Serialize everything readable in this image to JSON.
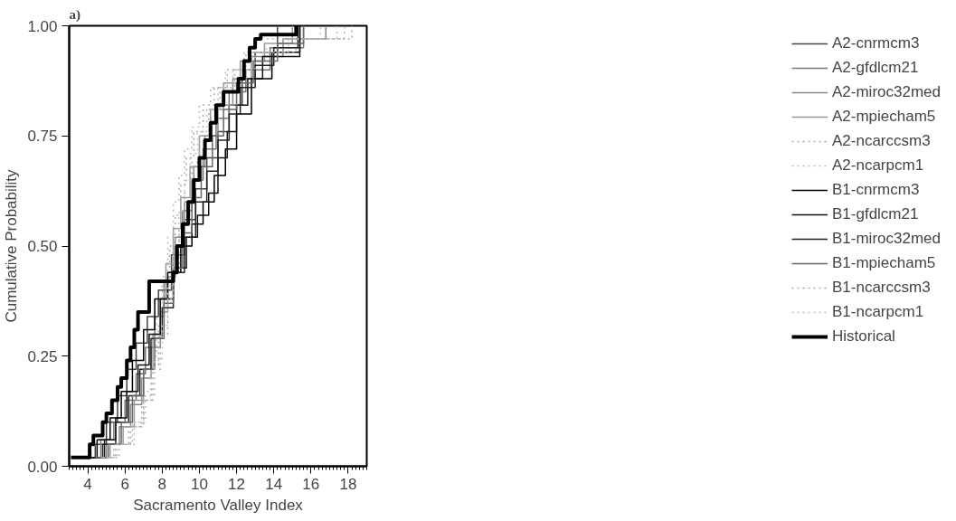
{
  "chart_data": {
    "type": "step",
    "xlabel": "Sacramento Valley Index",
    "ylabel": "Cumulative Probability",
    "annotations": [
      "a)"
    ],
    "xlim": [
      3,
      19
    ],
    "ylim": [
      0,
      1.0
    ],
    "xticks": [
      4,
      6,
      8,
      10,
      12,
      14,
      16,
      18
    ],
    "yticks": [
      {
        "value": 0,
        "label": "0.00"
      },
      {
        "value": 0.25,
        "label": "0.25"
      },
      {
        "value": 0.5,
        "label": "0.50"
      },
      {
        "value": 0.75,
        "label": "0.75"
      },
      {
        "value": 1.0,
        "label": "1.00"
      }
    ],
    "grid": false,
    "legend": "right",
    "series": [
      {
        "name": "A2-cnrmcm3",
        "color": "#444444",
        "x": [
          3.6,
          4.4,
          5.0,
          5.6,
          6.1,
          6.6,
          7.2,
          7.8,
          8.5,
          9.2,
          9.8,
          10.4,
          11.0,
          11.6,
          12.3,
          13.0,
          14.2
        ],
        "values": [
          0.02,
          0.05,
          0.1,
          0.16,
          0.22,
          0.28,
          0.34,
          0.4,
          0.48,
          0.56,
          0.63,
          0.7,
          0.76,
          0.82,
          0.88,
          0.94,
          1.0
        ]
      },
      {
        "name": "A2-gfdlcm21",
        "color": "#777777",
        "x": [
          4.0,
          4.7,
          5.4,
          6.0,
          6.6,
          7.1,
          7.6,
          8.1,
          8.6,
          9.1,
          9.6,
          10.2,
          10.9,
          11.6,
          12.5,
          13.8,
          15.6
        ],
        "values": [
          0.02,
          0.06,
          0.1,
          0.15,
          0.21,
          0.27,
          0.34,
          0.42,
          0.5,
          0.58,
          0.65,
          0.72,
          0.79,
          0.85,
          0.9,
          0.95,
          1.0
        ]
      },
      {
        "name": "A2-miroc32med",
        "color": "#888888",
        "x": [
          4.3,
          5.0,
          5.7,
          6.3,
          6.9,
          7.4,
          7.9,
          8.3,
          8.7,
          9.2,
          9.7,
          10.3,
          11.0,
          11.8,
          12.8,
          14.5,
          16.8
        ],
        "values": [
          0.02,
          0.05,
          0.09,
          0.14,
          0.2,
          0.27,
          0.35,
          0.43,
          0.52,
          0.6,
          0.68,
          0.75,
          0.82,
          0.88,
          0.93,
          0.97,
          1.0
        ]
      },
      {
        "name": "A2-mpiecham5",
        "color": "#999999",
        "x": [
          4.5,
          5.2,
          5.9,
          6.5,
          7.0,
          7.5,
          7.9,
          8.2,
          8.6,
          9.0,
          9.5,
          10.0,
          10.6,
          11.3,
          12.2,
          13.5,
          15.0
        ],
        "values": [
          0.02,
          0.05,
          0.09,
          0.15,
          0.22,
          0.3,
          0.38,
          0.46,
          0.54,
          0.61,
          0.68,
          0.75,
          0.81,
          0.87,
          0.92,
          0.96,
          1.0
        ]
      },
      {
        "name": "A2-ncarccsm3",
        "color": "#aaaaaa",
        "line_style": "dotted",
        "x": [
          4.6,
          5.4,
          6.2,
          6.9,
          7.4,
          7.8,
          8.1,
          8.4,
          8.7,
          9.0,
          9.3,
          9.7,
          10.2,
          10.8,
          11.5,
          12.5,
          14.5,
          18.2
        ],
        "values": [
          0.02,
          0.05,
          0.09,
          0.15,
          0.23,
          0.32,
          0.42,
          0.5,
          0.57,
          0.64,
          0.7,
          0.76,
          0.82,
          0.86,
          0.9,
          0.94,
          0.97,
          1.0
        ]
      },
      {
        "name": "A2-ncarpcm1",
        "color": "#bbbbbb",
        "line_style": "dotted",
        "x": [
          4.9,
          5.7,
          6.4,
          7.0,
          7.4,
          7.7,
          8.0,
          8.3,
          8.6,
          8.9,
          9.2,
          9.6,
          10.0,
          10.6,
          11.4,
          12.4,
          13.6,
          17.4
        ],
        "values": [
          0.02,
          0.05,
          0.1,
          0.17,
          0.25,
          0.34,
          0.43,
          0.52,
          0.6,
          0.66,
          0.72,
          0.77,
          0.82,
          0.86,
          0.9,
          0.94,
          0.97,
          1.0
        ]
      },
      {
        "name": "B1-cnrmcm3",
        "color": "#000000",
        "x": [
          3.8,
          4.5,
          5.2,
          5.8,
          6.4,
          7.0,
          7.6,
          8.3,
          9.0,
          9.6,
          10.2,
          10.8,
          11.4,
          12.0,
          12.8,
          13.9,
          15.4
        ],
        "values": [
          0.02,
          0.06,
          0.11,
          0.17,
          0.24,
          0.31,
          0.38,
          0.44,
          0.5,
          0.55,
          0.6,
          0.66,
          0.72,
          0.8,
          0.88,
          0.94,
          1.0
        ]
      },
      {
        "name": "B1-gfdlcm21",
        "color": "#111111",
        "x": [
          4.2,
          4.9,
          5.5,
          6.1,
          6.7,
          7.3,
          7.9,
          8.6,
          9.3,
          9.9,
          10.5,
          11.0,
          11.5,
          12.0,
          12.6,
          13.4,
          15.4
        ],
        "values": [
          0.02,
          0.06,
          0.11,
          0.17,
          0.23,
          0.3,
          0.38,
          0.45,
          0.52,
          0.57,
          0.62,
          0.7,
          0.76,
          0.82,
          0.88,
          0.93,
          1.0
        ]
      },
      {
        "name": "B1-miroc32med",
        "color": "#222222",
        "x": [
          4.1,
          4.8,
          5.5,
          6.2,
          6.8,
          7.4,
          8.0,
          8.6,
          9.2,
          9.8,
          10.4,
          11.0,
          11.6,
          12.2,
          13.0,
          14.0,
          15.3
        ],
        "values": [
          0.02,
          0.05,
          0.1,
          0.16,
          0.22,
          0.29,
          0.36,
          0.44,
          0.52,
          0.6,
          0.67,
          0.74,
          0.8,
          0.86,
          0.91,
          0.95,
          1.0
        ]
      },
      {
        "name": "B1-mpiecham5",
        "color": "#666666",
        "x": [
          4.4,
          5.1,
          5.8,
          6.4,
          7.0,
          7.6,
          8.1,
          8.6,
          9.1,
          9.6,
          10.1,
          10.7,
          11.3,
          12.0,
          12.9,
          14.2,
          15.6
        ],
        "values": [
          0.02,
          0.05,
          0.1,
          0.16,
          0.22,
          0.29,
          0.37,
          0.45,
          0.53,
          0.61,
          0.68,
          0.75,
          0.81,
          0.87,
          0.92,
          0.96,
          1.0
        ]
      },
      {
        "name": "B1-ncarccsm3",
        "color": "#aaaaaa",
        "line_style": "dotted",
        "x": [
          4.7,
          5.5,
          6.3,
          7.0,
          7.5,
          7.9,
          8.3,
          8.6,
          8.9,
          9.2,
          9.6,
          10.0,
          10.5,
          11.1,
          11.9,
          13.0,
          15.2,
          17.8
        ],
        "values": [
          0.02,
          0.05,
          0.09,
          0.15,
          0.22,
          0.3,
          0.38,
          0.46,
          0.54,
          0.62,
          0.69,
          0.75,
          0.81,
          0.86,
          0.9,
          0.94,
          0.97,
          1.0
        ]
      },
      {
        "name": "B1-ncarpcm1",
        "color": "#c0c0c0",
        "line_style": "dotted",
        "x": [
          4.8,
          5.6,
          6.5,
          7.1,
          7.6,
          8.0,
          8.3,
          8.6,
          8.9,
          9.2,
          9.5,
          9.9,
          10.4,
          11.0,
          11.8,
          12.8,
          14.8,
          16.5
        ],
        "values": [
          0.02,
          0.05,
          0.1,
          0.16,
          0.24,
          0.32,
          0.41,
          0.5,
          0.58,
          0.65,
          0.71,
          0.76,
          0.81,
          0.86,
          0.9,
          0.94,
          0.97,
          1.0
        ]
      },
      {
        "name": "Historical",
        "color": "#000000",
        "x": [
          3.1,
          4.1,
          4.3,
          4.8,
          5.0,
          5.3,
          5.6,
          5.8,
          6.1,
          6.3,
          6.5,
          6.7,
          7.3,
          8.6,
          8.8,
          9.1,
          9.4,
          9.7,
          10.0,
          10.3,
          10.6,
          10.9,
          11.3,
          12.1,
          12.4,
          12.7,
          13.0,
          13.3,
          15.2
        ],
        "values": [
          0.02,
          0.05,
          0.07,
          0.1,
          0.12,
          0.15,
          0.18,
          0.2,
          0.24,
          0.27,
          0.31,
          0.35,
          0.42,
          0.44,
          0.5,
          0.55,
          0.6,
          0.65,
          0.7,
          0.74,
          0.78,
          0.82,
          0.85,
          0.88,
          0.92,
          0.95,
          0.97,
          0.98,
          1.0
        ]
      }
    ]
  }
}
